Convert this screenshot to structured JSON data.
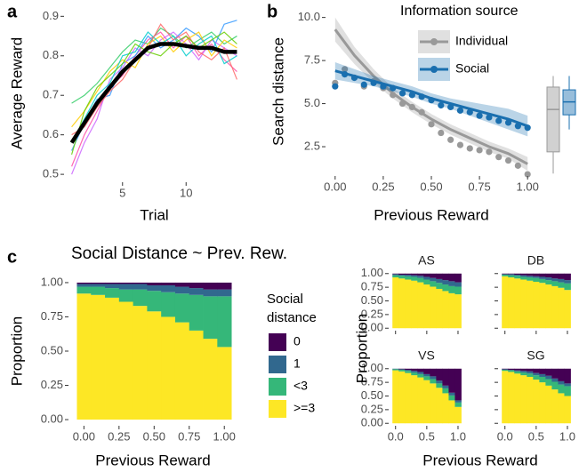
{
  "chart_data": [
    {
      "type": "line",
      "panel_label": "a",
      "x_label": "Trial",
      "y_label": "Average Reward",
      "x": [
        1,
        2,
        3,
        4,
        5,
        6,
        7,
        8,
        9,
        10,
        11,
        12,
        13,
        14
      ],
      "xlim": [
        0.4,
        14.6
      ],
      "xticks": [
        5,
        10
      ],
      "ylim": [
        0.48,
        0.93
      ],
      "yticks": [
        0.5,
        0.6,
        0.7,
        0.8,
        0.9
      ],
      "series": [
        {
          "color": "#ff4da6",
          "values": [
            0.52,
            0.6,
            0.66,
            0.72,
            0.75,
            0.8,
            0.84,
            0.86,
            0.82,
            0.85,
            0.8,
            0.83,
            0.79,
            0.76
          ]
        },
        {
          "color": "#33cc66",
          "values": [
            0.68,
            0.7,
            0.73,
            0.77,
            0.81,
            0.84,
            0.83,
            0.87,
            0.85,
            0.82,
            0.84,
            0.86,
            0.83,
            0.85
          ]
        },
        {
          "color": "#3399ff",
          "values": [
            0.56,
            0.63,
            0.69,
            0.7,
            0.78,
            0.8,
            0.85,
            0.82,
            0.84,
            0.87,
            0.85,
            0.81,
            0.88,
            0.89
          ]
        },
        {
          "color": "#cc66ff",
          "values": [
            0.5,
            0.58,
            0.64,
            0.74,
            0.77,
            0.82,
            0.8,
            0.84,
            0.86,
            0.83,
            0.79,
            0.84,
            0.82,
            0.8
          ]
        },
        {
          "color": "#ffcc00",
          "values": [
            0.62,
            0.66,
            0.71,
            0.76,
            0.79,
            0.77,
            0.83,
            0.85,
            0.81,
            0.84,
            0.86,
            0.8,
            0.84,
            0.82
          ]
        },
        {
          "color": "#00cccc",
          "values": [
            0.58,
            0.64,
            0.7,
            0.73,
            0.8,
            0.81,
            0.86,
            0.83,
            0.85,
            0.8,
            0.83,
            0.85,
            0.78,
            0.8
          ]
        },
        {
          "color": "#ff6666",
          "values": [
            0.6,
            0.62,
            0.67,
            0.71,
            0.74,
            0.79,
            0.82,
            0.88,
            0.84,
            0.86,
            0.81,
            0.79,
            0.82,
            0.74
          ]
        },
        {
          "color": "#66cc00",
          "values": [
            0.55,
            0.66,
            0.72,
            0.75,
            0.78,
            0.83,
            0.81,
            0.8,
            0.83,
            0.85,
            0.82,
            0.84,
            0.86,
            0.83
          ]
        }
      ],
      "mean": {
        "color": "#000000",
        "values": [
          0.58,
          0.63,
          0.68,
          0.72,
          0.76,
          0.79,
          0.82,
          0.83,
          0.83,
          0.825,
          0.82,
          0.82,
          0.81,
          0.81
        ]
      }
    },
    {
      "type": "scatter",
      "panel_label": "b",
      "x_label": "Previous Reward",
      "y_label": "Search distance",
      "legend_title": "Information source",
      "legend_position": "top-right",
      "xlim": [
        -0.05,
        1.05
      ],
      "xticks": [
        {
          "value": 0,
          "label": "0.00"
        },
        {
          "value": 0.25,
          "label": "0.25"
        },
        {
          "value": 0.5,
          "label": "0.50"
        },
        {
          "value": 0.75,
          "label": "0.75"
        },
        {
          "value": 1,
          "label": "1.00"
        }
      ],
      "ylim": [
        0.8,
        10.6
      ],
      "yticks": [
        {
          "value": 2.5,
          "label": "2.5"
        },
        {
          "value": 5,
          "label": "5.0"
        },
        {
          "value": 7.5,
          "label": "7.5"
        },
        {
          "value": 10,
          "label": "10.0"
        }
      ],
      "fit_x": [
        0,
        0.1,
        0.2,
        0.3,
        0.4,
        0.5,
        0.6,
        0.7,
        0.8,
        0.9,
        1
      ],
      "series": [
        {
          "name": "Individual",
          "color": "#999999",
          "x": [
            0,
            0.05,
            0.1,
            0.15,
            0.2,
            0.25,
            0.3,
            0.35,
            0.4,
            0.45,
            0.5,
            0.55,
            0.6,
            0.65,
            0.7,
            0.75,
            0.8,
            0.85,
            0.9,
            0.95,
            1
          ],
          "values": [
            6.2,
            7.0,
            6.5,
            6.0,
            6.3,
            5.9,
            5.5,
            5.0,
            4.8,
            4.5,
            3.8,
            3.3,
            2.9,
            2.6,
            2.4,
            2.3,
            2.2,
            1.9,
            1.7,
            1.4,
            0.9
          ],
          "fit": [
            9.3,
            7.8,
            6.6,
            5.6,
            4.8,
            4.1,
            3.5,
            3.0,
            2.5,
            2.1,
            1.5
          ],
          "fit_lower": [
            8.6,
            7.3,
            6.2,
            5.3,
            4.5,
            3.8,
            3.2,
            2.7,
            2.2,
            1.8,
            1.1
          ],
          "fit_upper": [
            10.0,
            8.3,
            7.0,
            5.9,
            5.1,
            4.4,
            3.8,
            3.3,
            2.8,
            2.4,
            1.9
          ],
          "box": {
            "min": 0.94,
            "q1": 2.2,
            "median": 4.66,
            "q3": 5.96,
            "max": 6.6
          }
        },
        {
          "name": "Social",
          "color": "#1a6faf",
          "x": [
            0,
            0.05,
            0.1,
            0.15,
            0.2,
            0.25,
            0.3,
            0.35,
            0.4,
            0.45,
            0.5,
            0.55,
            0.6,
            0.65,
            0.7,
            0.75,
            0.8,
            0.85,
            0.9,
            0.95,
            1
          ],
          "values": [
            6.0,
            6.7,
            6.5,
            6.1,
            6.2,
            6.0,
            5.9,
            5.6,
            5.5,
            5.4,
            5.2,
            4.9,
            4.8,
            4.6,
            4.5,
            4.3,
            4.2,
            4.0,
            3.9,
            3.7,
            3.6
          ],
          "fit": [
            6.9,
            6.6,
            6.3,
            6.0,
            5.7,
            5.3,
            5.0,
            4.7,
            4.4,
            4.1,
            3.7
          ],
          "fit_lower": [
            6.4,
            6.2,
            6.0,
            5.7,
            5.4,
            5.0,
            4.7,
            4.3,
            3.9,
            3.5,
            3.1
          ],
          "fit_upper": [
            7.4,
            7.0,
            6.6,
            6.3,
            6.0,
            5.6,
            5.3,
            5.1,
            4.9,
            4.7,
            4.3
          ],
          "box": {
            "min": 3.5,
            "q1": 4.35,
            "median": 5.1,
            "q3": 5.8,
            "max": 6.6
          }
        }
      ]
    },
    {
      "type": "bar",
      "stacked": true,
      "panel_label": "c",
      "title": "Social Distance ~ Prev. Rew.",
      "x_label": "Previous Reward",
      "y_label": "Proportion",
      "legend_title": "Social distance",
      "x": [
        0,
        0.1,
        0.2,
        0.3,
        0.4,
        0.5,
        0.6,
        0.7,
        0.8,
        0.9,
        1
      ],
      "xlim": [
        -0.11,
        1.1
      ],
      "xticks": [
        {
          "value": 0,
          "label": "0.00"
        },
        {
          "value": 0.25,
          "label": "0.25"
        },
        {
          "value": 0.5,
          "label": "0.50"
        },
        {
          "value": 0.75,
          "label": "0.75"
        },
        {
          "value": 1,
          "label": "1.00"
        }
      ],
      "ylim": [
        -0.045,
        1.045
      ],
      "yticks": [
        {
          "value": 0,
          "label": "0.00"
        },
        {
          "value": 0.25,
          "label": "0.25"
        },
        {
          "value": 0.5,
          "label": "0.50"
        },
        {
          "value": 0.75,
          "label": "0.75"
        },
        {
          "value": 1,
          "label": "1.00"
        }
      ],
      "series": [
        {
          "name": "0",
          "color": "#440154",
          "values": [
            0.01,
            0.01,
            0.01,
            0.01,
            0.01,
            0.02,
            0.02,
            0.03,
            0.04,
            0.05,
            0.05
          ]
        },
        {
          "name": "1",
          "color": "#31688e",
          "values": [
            0.02,
            0.02,
            0.03,
            0.04,
            0.04,
            0.04,
            0.05,
            0.05,
            0.05,
            0.05,
            0.05
          ]
        },
        {
          "name": "<3",
          "color": "#35b779",
          "values": [
            0.05,
            0.06,
            0.07,
            0.09,
            0.12,
            0.15,
            0.18,
            0.21,
            0.26,
            0.31,
            0.37
          ]
        },
        {
          "name": ">=3",
          "color": "#fde725",
          "values": [
            0.92,
            0.91,
            0.89,
            0.86,
            0.83,
            0.79,
            0.75,
            0.71,
            0.65,
            0.59,
            0.53
          ]
        }
      ]
    },
    {
      "type": "bar",
      "stacked": true,
      "x_label": "Previous Reward",
      "y_label": "Proportion",
      "x": [
        0,
        0.1,
        0.2,
        0.3,
        0.4,
        0.5,
        0.6,
        0.7,
        0.8,
        0.9,
        1
      ],
      "xlim": [
        -0.11,
        1.1
      ],
      "xticks": [
        {
          "value": 0,
          "label": "0.0"
        },
        {
          "value": 0.5,
          "label": "0.5"
        },
        {
          "value": 1,
          "label": "1.0"
        }
      ],
      "ylim": [
        -0.045,
        1.045
      ],
      "yticks": [
        {
          "value": 0,
          "label": "0.00"
        },
        {
          "value": 0.25,
          "label": "0.25"
        },
        {
          "value": 0.5,
          "label": "0.50"
        },
        {
          "value": 0.75,
          "label": "0.75"
        },
        {
          "value": 1,
          "label": "1.00"
        }
      ],
      "facets": [
        {
          "title": "AS",
          "series": [
            {
              "color": "#440154",
              "values": [
                0.01,
                0.02,
                0.02,
                0.03,
                0.04,
                0.06,
                0.08,
                0.1,
                0.12,
                0.14,
                0.16
              ]
            },
            {
              "color": "#31688e",
              "values": [
                0.02,
                0.02,
                0.03,
                0.03,
                0.04,
                0.05,
                0.06,
                0.07,
                0.08,
                0.09,
                0.08
              ]
            },
            {
              "color": "#35b779",
              "values": [
                0.04,
                0.05,
                0.06,
                0.07,
                0.08,
                0.09,
                0.1,
                0.11,
                0.12,
                0.13,
                0.14
              ]
            },
            {
              "color": "#fde725",
              "values": [
                0.93,
                0.91,
                0.89,
                0.87,
                0.84,
                0.8,
                0.76,
                0.72,
                0.68,
                0.64,
                0.62
              ]
            }
          ]
        },
        {
          "title": "DB",
          "series": [
            {
              "color": "#440154",
              "values": [
                0.01,
                0.01,
                0.02,
                0.03,
                0.04,
                0.05,
                0.06,
                0.07,
                0.09,
                0.1,
                0.12
              ]
            },
            {
              "color": "#31688e",
              "values": [
                0.01,
                0.02,
                0.02,
                0.03,
                0.03,
                0.03,
                0.04,
                0.05,
                0.05,
                0.06,
                0.06
              ]
            },
            {
              "color": "#35b779",
              "values": [
                0.03,
                0.04,
                0.05,
                0.05,
                0.06,
                0.07,
                0.07,
                0.08,
                0.09,
                0.1,
                0.12
              ]
            },
            {
              "color": "#fde725",
              "values": [
                0.95,
                0.93,
                0.91,
                0.89,
                0.87,
                0.85,
                0.83,
                0.8,
                0.77,
                0.74,
                0.7
              ]
            }
          ]
        },
        {
          "title": "VS",
          "series": [
            {
              "color": "#440154",
              "values": [
                0,
                0.01,
                0.02,
                0.04,
                0.06,
                0.1,
                0.14,
                0.22,
                0.31,
                0.44,
                0.58
              ]
            },
            {
              "color": "#31688e",
              "values": [
                0.01,
                0.01,
                0.02,
                0.03,
                0.04,
                0.04,
                0.05,
                0.05,
                0.05,
                0.05,
                0.04
              ]
            },
            {
              "color": "#35b779",
              "values": [
                0.02,
                0.03,
                0.04,
                0.05,
                0.06,
                0.07,
                0.08,
                0.08,
                0.09,
                0.09,
                0.08
              ]
            },
            {
              "color": "#fde725",
              "values": [
                0.97,
                0.95,
                0.92,
                0.88,
                0.84,
                0.79,
                0.73,
                0.65,
                0.55,
                0.42,
                0.3
              ]
            }
          ]
        },
        {
          "title": "SG",
          "series": [
            {
              "color": "#440154",
              "values": [
                0.01,
                0.02,
                0.03,
                0.04,
                0.05,
                0.08,
                0.1,
                0.13,
                0.18,
                0.23,
                0.27
              ]
            },
            {
              "color": "#31688e",
              "values": [
                0.01,
                0.01,
                0.02,
                0.03,
                0.04,
                0.04,
                0.05,
                0.06,
                0.06,
                0.06,
                0.05
              ]
            },
            {
              "color": "#35b779",
              "values": [
                0.02,
                0.03,
                0.04,
                0.05,
                0.06,
                0.08,
                0.1,
                0.12,
                0.14,
                0.16,
                0.18
              ]
            },
            {
              "color": "#fde725",
              "values": [
                0.96,
                0.94,
                0.91,
                0.88,
                0.85,
                0.8,
                0.75,
                0.69,
                0.62,
                0.55,
                0.5
              ]
            }
          ]
        }
      ]
    }
  ]
}
